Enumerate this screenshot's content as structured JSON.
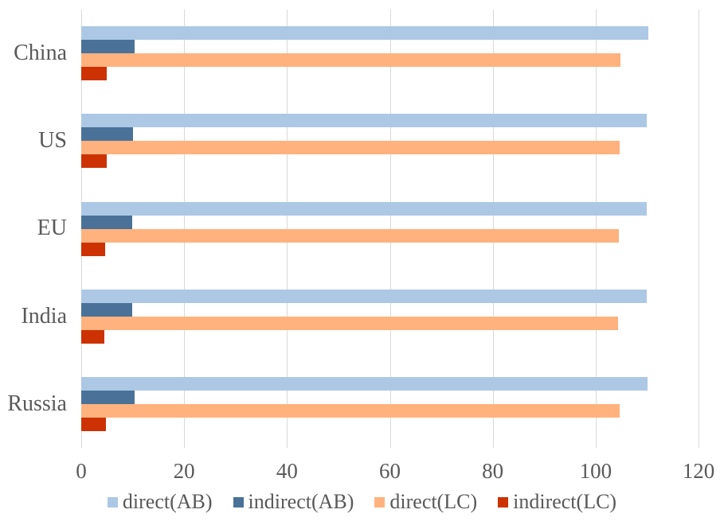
{
  "chart_data": {
    "type": "bar",
    "orientation": "horizontal",
    "title": "",
    "xlabel": "",
    "ylabel": "",
    "categories": [
      "China",
      "US",
      "EU",
      "India",
      "Russia"
    ],
    "series": [
      {
        "name": "direct(AB)",
        "color": "#ACC8E4",
        "values": [
          110.2,
          110.0,
          110.0,
          109.9,
          110.1
        ]
      },
      {
        "name": "indirect(AB)",
        "color": "#4A7298",
        "values": [
          10.4,
          10.0,
          9.9,
          9.9,
          10.3
        ]
      },
      {
        "name": "direct(LC)",
        "color": "#FFB27E",
        "values": [
          104.8,
          104.6,
          104.5,
          104.4,
          104.6
        ]
      },
      {
        "name": "indirect(LC)",
        "color": "#CC3203",
        "values": [
          4.9,
          4.9,
          4.7,
          4.5,
          4.8
        ]
      }
    ],
    "xlim": [
      0,
      120
    ],
    "xticks": [
      0,
      20,
      40,
      60,
      80,
      100,
      120
    ],
    "grid": "vertical-only",
    "legend_position": "bottom"
  },
  "styles": {
    "background": "#FFFFFF",
    "grid_color": "#D9D9D9",
    "text_color": "#595959"
  }
}
